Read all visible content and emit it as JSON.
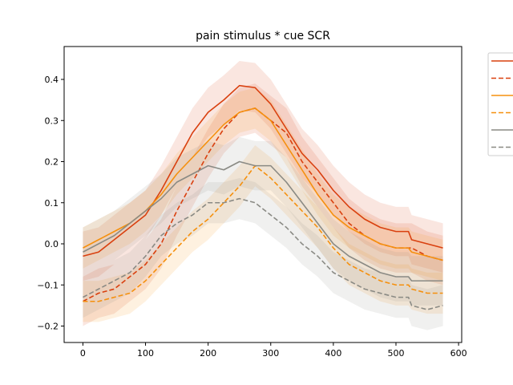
{
  "chart_data": {
    "type": "line",
    "title": "pain stimulus * cue SCR",
    "xlabel": "",
    "ylabel": "",
    "xlim": [
      -30,
      605
    ],
    "ylim": [
      -0.24,
      0.48
    ],
    "xticks": [
      0,
      100,
      200,
      300,
      400,
      500,
      600
    ],
    "yticks": [
      -0.2,
      -0.1,
      0.0,
      0.1,
      0.2,
      0.3,
      0.4
    ],
    "xtick_labels": [
      "0",
      "100",
      "200",
      "300",
      "400",
      "500",
      "600"
    ],
    "ytick_labels": [
      "−0.2",
      "−0.1",
      "0.0",
      "0.1",
      "0.2",
      "0.3",
      "0.4"
    ],
    "grid": false,
    "legend_placement": "outside right (entries unlabeled)",
    "x": [
      0,
      25,
      50,
      75,
      100,
      125,
      150,
      175,
      200,
      225,
      250,
      275,
      300,
      325,
      350,
      375,
      400,
      425,
      450,
      475,
      500,
      520,
      525,
      550,
      575
    ],
    "series": [
      {
        "color": "#d9400f",
        "linestyle": "solid",
        "band": 0.06,
        "values": [
          -0.03,
          -0.02,
          0.01,
          0.04,
          0.07,
          0.13,
          0.2,
          0.27,
          0.32,
          0.35,
          0.385,
          0.38,
          0.34,
          0.28,
          0.22,
          0.18,
          0.13,
          0.09,
          0.06,
          0.04,
          0.03,
          0.03,
          0.01,
          0.0,
          -0.01
        ]
      },
      {
        "color": "#d9400f",
        "linestyle": "dashed",
        "band": 0.06,
        "values": [
          -0.14,
          -0.12,
          -0.11,
          -0.08,
          -0.05,
          0.0,
          0.08,
          0.15,
          0.22,
          0.28,
          0.32,
          0.33,
          0.3,
          0.27,
          0.2,
          0.15,
          0.1,
          0.05,
          0.02,
          0.0,
          -0.01,
          -0.01,
          -0.01,
          -0.03,
          -0.04
        ]
      },
      {
        "color": "#f5900e",
        "linestyle": "solid",
        "band": 0.05,
        "values": [
          -0.01,
          0.01,
          0.03,
          0.05,
          0.08,
          0.12,
          0.17,
          0.21,
          0.25,
          0.29,
          0.32,
          0.33,
          0.3,
          0.24,
          0.18,
          0.12,
          0.07,
          0.04,
          0.02,
          0.0,
          -0.01,
          -0.01,
          -0.02,
          -0.03,
          -0.04
        ]
      },
      {
        "color": "#f5900e",
        "linestyle": "dashed",
        "band": 0.05,
        "values": [
          -0.14,
          -0.14,
          -0.13,
          -0.12,
          -0.09,
          -0.05,
          -0.01,
          0.03,
          0.06,
          0.1,
          0.14,
          0.19,
          0.16,
          0.12,
          0.08,
          0.04,
          -0.01,
          -0.05,
          -0.07,
          -0.09,
          -0.1,
          -0.1,
          -0.11,
          -0.12,
          -0.12
        ]
      },
      {
        "color": "#8a8a84",
        "linestyle": "solid",
        "band": 0.06,
        "values": [
          -0.02,
          0.0,
          0.02,
          0.05,
          0.08,
          0.11,
          0.15,
          0.17,
          0.19,
          0.18,
          0.2,
          0.19,
          0.19,
          0.15,
          0.1,
          0.05,
          0.0,
          -0.03,
          -0.05,
          -0.07,
          -0.08,
          -0.08,
          -0.09,
          -0.09,
          -0.09
        ]
      },
      {
        "color": "#8a8a84",
        "linestyle": "dashed",
        "band": 0.05,
        "values": [
          -0.13,
          -0.11,
          -0.09,
          -0.07,
          -0.03,
          0.02,
          0.05,
          0.07,
          0.1,
          0.1,
          0.11,
          0.1,
          0.07,
          0.04,
          0.0,
          -0.03,
          -0.07,
          -0.09,
          -0.11,
          -0.12,
          -0.13,
          -0.13,
          -0.15,
          -0.16,
          -0.15
        ]
      }
    ]
  }
}
